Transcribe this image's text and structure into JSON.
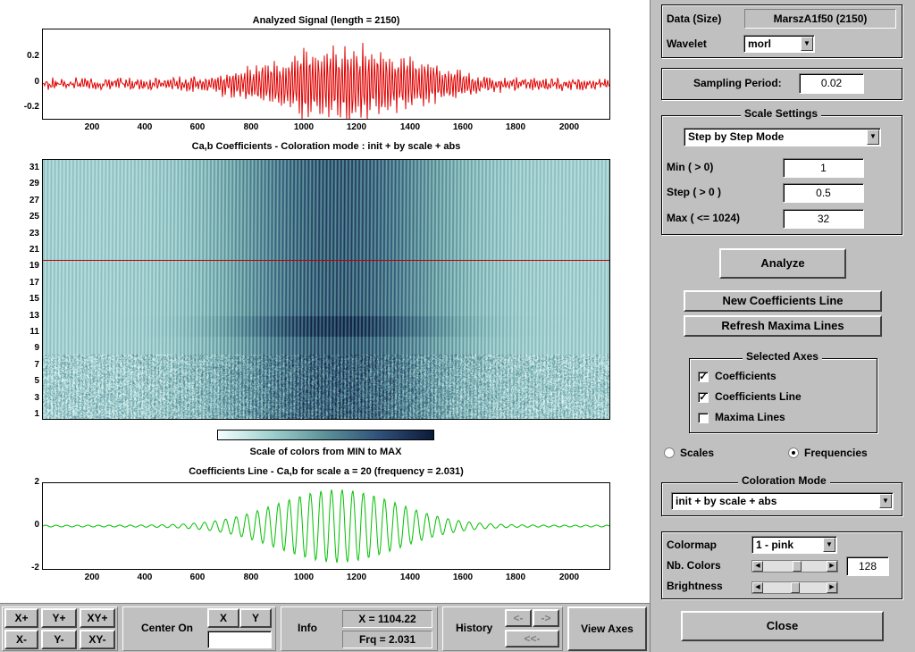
{
  "plot1": {
    "title": "Analyzed Signal  (length = 2150)",
    "yticks": [
      "0.2",
      "0",
      "-0.2"
    ],
    "xticks": [
      "200",
      "400",
      "600",
      "800",
      "1000",
      "1200",
      "1400",
      "1600",
      "1800",
      "2000"
    ]
  },
  "plot2": {
    "title": "Ca,b Coefficients  - Coloration mode : init + by scale + abs",
    "yticks": [
      "31",
      "29",
      "27",
      "25",
      "23",
      "21",
      "19",
      "17",
      "15",
      "13",
      "11",
      "9",
      "7",
      "5",
      "3",
      "1"
    ]
  },
  "colorbar": {
    "label": "Scale of colors from MIN to MAX"
  },
  "plot3": {
    "title": "Coefficients Line - Ca,b  for scale a = 20  (frequency =   2.031)",
    "yticks": [
      "2",
      "0",
      "-2"
    ],
    "xticks": [
      "200",
      "400",
      "600",
      "800",
      "1000",
      "1200",
      "1400",
      "1600",
      "1800",
      "2000"
    ]
  },
  "colors": {
    "signal": "#e00000",
    "line": "#00c000",
    "scale_marker": "#c00000",
    "panel": "#c0c0c0"
  },
  "panel": {
    "data_label": "Data  (Size)",
    "data_value": "MarszA1f50  (2150)",
    "wavelet_label": "Wavelet",
    "wavelet_value": "morl",
    "sampling_label": "Sampling Period:",
    "sampling_value": "0.02",
    "scale_settings_title": "Scale Settings",
    "scale_mode": "Step by Step Mode",
    "min_label": "Min  ( > 0)",
    "min_value": "1",
    "step_label": "Step ( > 0 )",
    "step_value": "0.5",
    "max_label": "Max  ( <= 1024)",
    "max_value": "32",
    "analyze": "Analyze",
    "new_coef_line": "New Coefficients Line",
    "refresh_maxima": "Refresh Maxima Lines",
    "selected_axes_title": "Selected Axes",
    "axes_items": [
      {
        "label": "Coefficients",
        "checked": true
      },
      {
        "label": "Coefficients Line",
        "checked": true
      },
      {
        "label": "Maxima Lines",
        "checked": false
      }
    ],
    "radio_scales": "Scales",
    "radio_frequencies": "Frequencies",
    "radio_selected": "Frequencies",
    "coloration_title": "Coloration Mode",
    "coloration_value": "init + by scale + abs",
    "colormap_label": "Colormap",
    "colormap_value": "1 - pink",
    "nb_colors_label": "Nb. Colors",
    "nb_colors_value": "128",
    "brightness_label": "Brightness",
    "close": "Close"
  },
  "toolbar": {
    "xplus": "X+",
    "yplus": "Y+",
    "xyplus": "XY+",
    "xminus": "X-",
    "yminus": "Y-",
    "xyminus": "XY-",
    "center_on": "Center On",
    "x": "X",
    "y": "Y",
    "info": "Info",
    "x_readout": "X = 1104.22",
    "frq_readout": "Frq =    2.031",
    "history": "History",
    "hist_back": "<-",
    "hist_fwd": "->",
    "hist_first": "<<-",
    "view_axes": "View Axes"
  }
}
